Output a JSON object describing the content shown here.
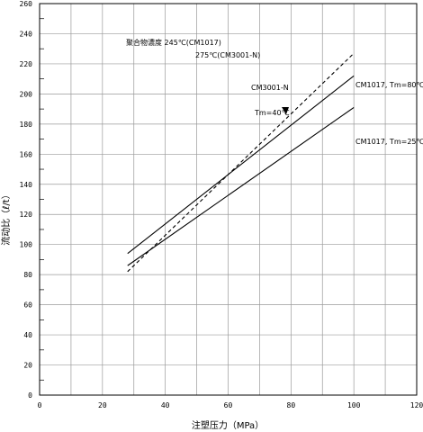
{
  "chart_data": {
    "type": "line",
    "title": "",
    "xlabel": "注塑压力（MPa）",
    "ylabel": "流动比（ℓ/t）",
    "xlim": [
      0,
      120
    ],
    "ylim": [
      0,
      260
    ],
    "x_ticks": [
      0,
      20,
      40,
      60,
      80,
      100,
      120
    ],
    "y_ticks": [
      0,
      20,
      40,
      60,
      80,
      100,
      120,
      140,
      160,
      180,
      200,
      220,
      240,
      260
    ],
    "grid": true,
    "series": [
      {
        "name": "CM1017, Tm=80℃",
        "style": "solid",
        "x": [
          28,
          100
        ],
        "y": [
          94,
          212
        ],
        "label": "CM1017, Tm=80℃"
      },
      {
        "name": "CM1017, Tm=25℃",
        "style": "solid",
        "x": [
          28,
          100
        ],
        "y": [
          86,
          191
        ],
        "label": "CM1017, Tm=25℃"
      },
      {
        "name": "CM3001-N, Tm=40℃",
        "style": "dashed",
        "x": [
          28,
          100
        ],
        "y": [
          82,
          227
        ],
        "label_line1": "CM3001-N",
        "label_line2": "Tm=40℃"
      }
    ],
    "annotations": {
      "line1": "聚合物濃度 245℃(CM1017)",
      "line2": "275℃(CM3001-N)"
    }
  }
}
